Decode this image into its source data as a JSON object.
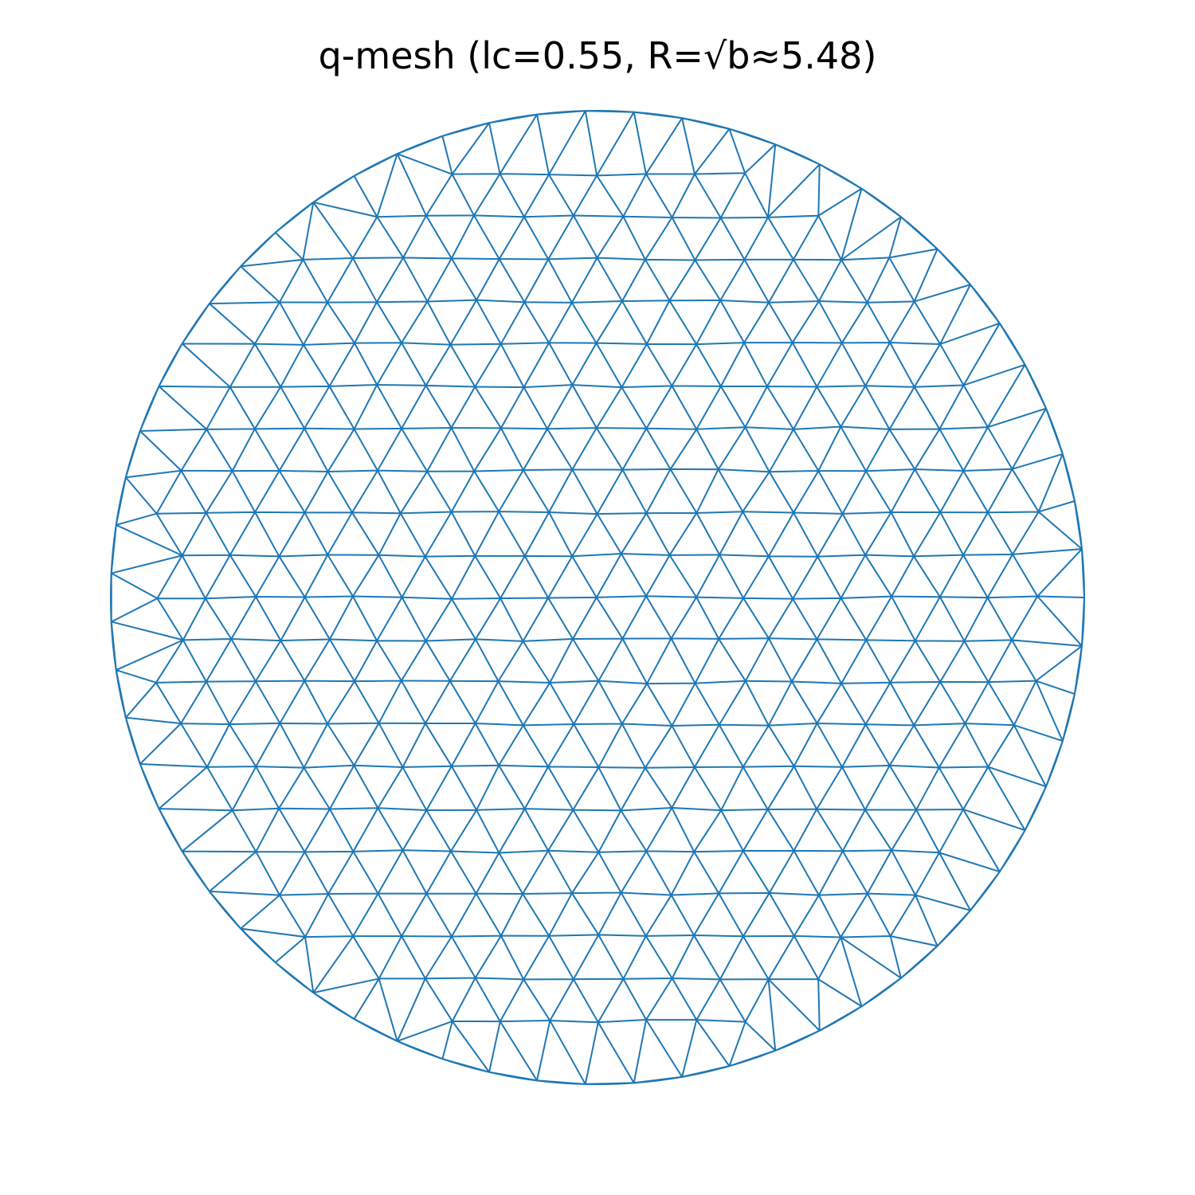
{
  "figure": {
    "title": "q-mesh (lc=0.55, R=√b≈5.48)"
  },
  "mesh": {
    "shape": "disk",
    "element_type": "triangle",
    "lc": 0.55,
    "radius": 5.477,
    "edge_color": "#1f77b4",
    "background_color": "#ffffff"
  }
}
